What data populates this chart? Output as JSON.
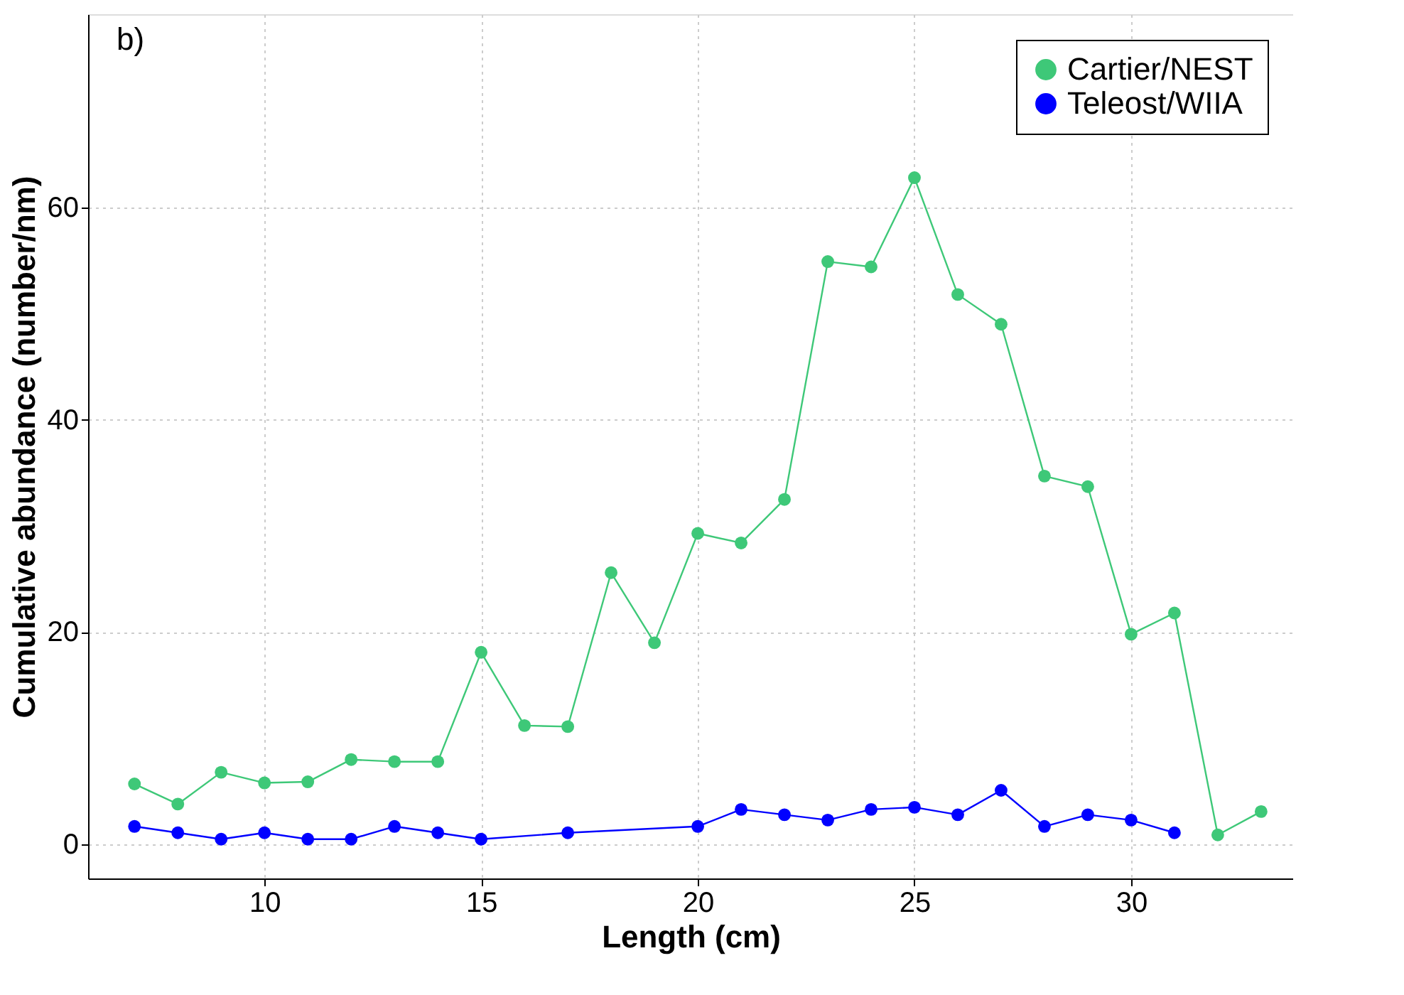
{
  "chart_data": {
    "type": "line",
    "xlabel": "Length (cm)",
    "ylabel": "Cumulative abundance (number/nm)",
    "annotations": [
      "b)"
    ],
    "xlim": [
      5.93,
      33.74
    ],
    "ylim": [
      -3.2,
      78.2
    ],
    "xticks": [
      10,
      15,
      20,
      25,
      30
    ],
    "yticks": [
      0,
      20,
      40,
      60
    ],
    "grid": true,
    "legend": "top right",
    "marker": "circle",
    "line_style": "solid",
    "series": [
      {
        "name": "Cartier/NEST",
        "color": "#3ec878",
        "x": [
          7,
          8,
          9,
          10,
          11,
          12,
          13,
          14,
          15,
          16,
          17,
          18,
          19,
          20,
          21,
          22,
          23,
          24,
          25,
          26,
          27,
          28,
          29,
          30,
          31,
          32,
          33
        ],
        "values": [
          5.7,
          3.8,
          6.8,
          5.8,
          5.9,
          8.0,
          7.8,
          7.8,
          18.1,
          11.2,
          11.1,
          25.6,
          19.0,
          29.3,
          28.4,
          32.5,
          54.9,
          54.4,
          62.8,
          51.8,
          49.0,
          34.7,
          33.7,
          19.8,
          21.8,
          0.9,
          3.1
        ]
      },
      {
        "name": "Teleost/WIIA",
        "color": "#0000ff",
        "x": [
          7,
          8,
          9,
          10,
          11,
          12,
          13,
          14,
          15,
          17,
          20,
          21,
          22,
          23,
          24,
          25,
          26,
          27,
          28,
          29,
          30,
          31
        ],
        "values": [
          1.7,
          1.1,
          0.5,
          1.1,
          0.5,
          0.5,
          1.7,
          1.1,
          0.5,
          1.1,
          1.7,
          3.3,
          2.8,
          2.3,
          3.3,
          3.5,
          2.8,
          5.1,
          1.7,
          2.8,
          2.3,
          1.1
        ]
      }
    ]
  }
}
